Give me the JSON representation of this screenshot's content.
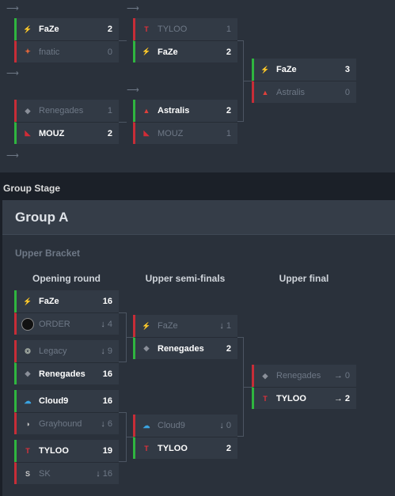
{
  "playoffs": {
    "matches": [
      {
        "id": "qf1",
        "teams": [
          {
            "name": "FaZe",
            "score": "2",
            "win": true,
            "logo": "faze-logo"
          },
          {
            "name": "fnatic",
            "score": "0",
            "win": false,
            "logo": "fnatic-logo"
          }
        ]
      },
      {
        "id": "qf2",
        "teams": [
          {
            "name": "Renegades",
            "score": "1",
            "win": false,
            "logo": "renegades-logo"
          },
          {
            "name": "MOUZ",
            "score": "2",
            "win": true,
            "logo": "mouz-logo"
          }
        ]
      },
      {
        "id": "sf1",
        "teams": [
          {
            "name": "TYLOO",
            "score": "1",
            "win": false,
            "logo": "tyloo-logo"
          },
          {
            "name": "FaZe",
            "score": "2",
            "win": true,
            "logo": "faze-logo"
          }
        ]
      },
      {
        "id": "sf2",
        "teams": [
          {
            "name": "Astralis",
            "score": "2",
            "win": true,
            "logo": "astralis-logo"
          },
          {
            "name": "MOUZ",
            "score": "1",
            "win": false,
            "logo": "mouz-logo"
          }
        ]
      },
      {
        "id": "final",
        "teams": [
          {
            "name": "FaZe",
            "score": "3",
            "win": true,
            "logo": "faze-logo"
          },
          {
            "name": "Astralis",
            "score": "0",
            "win": false,
            "logo": "astralis-logo"
          }
        ]
      }
    ]
  },
  "section_label": "Group Stage",
  "group": {
    "title": "Group A",
    "bracket_label": "Upper Bracket",
    "rounds": [
      "Opening round",
      "Upper semi-finals",
      "Upper final"
    ],
    "matches": [
      {
        "id": "or1",
        "teams": [
          {
            "name": "FaZe",
            "score": "16",
            "status": "",
            "win": true,
            "logo": "faze-logo"
          },
          {
            "name": "ORDER",
            "score": "4",
            "status": "↓",
            "win": false,
            "logo": "order-logo"
          }
        ]
      },
      {
        "id": "or2",
        "teams": [
          {
            "name": "Legacy",
            "score": "9",
            "status": "↓",
            "win": false,
            "logo": "legacy-logo"
          },
          {
            "name": "Renegades",
            "score": "16",
            "status": "",
            "win": true,
            "logo": "renegades-logo"
          }
        ]
      },
      {
        "id": "or3",
        "teams": [
          {
            "name": "Cloud9",
            "score": "16",
            "status": "",
            "win": true,
            "logo": "cloud9-logo"
          },
          {
            "name": "Grayhound",
            "score": "6",
            "status": "↓",
            "win": false,
            "logo": "grayhound-logo"
          }
        ]
      },
      {
        "id": "or4",
        "teams": [
          {
            "name": "TYLOO",
            "score": "19",
            "status": "",
            "win": true,
            "logo": "tyloo-logo"
          },
          {
            "name": "SK",
            "score": "16",
            "status": "↓",
            "win": false,
            "logo": "sk-logo"
          }
        ]
      },
      {
        "id": "usf1",
        "teams": [
          {
            "name": "FaZe",
            "score": "1",
            "status": "↓",
            "win": false,
            "logo": "faze-logo"
          },
          {
            "name": "Renegades",
            "score": "2",
            "status": "",
            "win": true,
            "logo": "renegades-logo"
          }
        ]
      },
      {
        "id": "usf2",
        "teams": [
          {
            "name": "Cloud9",
            "score": "0",
            "status": "↓",
            "win": false,
            "logo": "cloud9-logo"
          },
          {
            "name": "TYLOO",
            "score": "2",
            "status": "",
            "win": true,
            "logo": "tyloo-logo"
          }
        ]
      },
      {
        "id": "uf",
        "teams": [
          {
            "name": "Renegades",
            "score": "0",
            "status": "→",
            "win": false,
            "logo": "renegades-logo"
          },
          {
            "name": "TYLOO",
            "score": "2",
            "status": "→",
            "win": true,
            "logo": "tyloo-logo"
          }
        ]
      }
    ]
  },
  "colors": {
    "win": "#2fb53f",
    "lose": "#c72d37",
    "panel": "#2a313b",
    "card": "#323a45"
  }
}
